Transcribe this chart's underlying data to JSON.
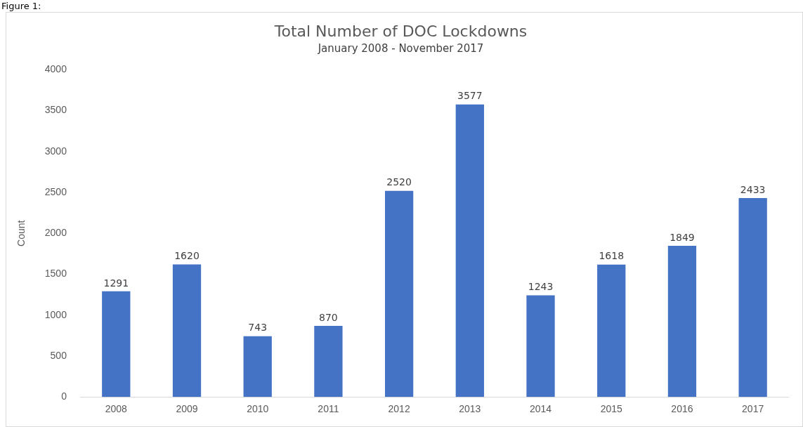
{
  "chart_data": {
    "type": "bar",
    "title": "Total Number of DOC Lockdowns",
    "subtitle": "January 2008 - November 2017",
    "ylabel": "Count",
    "categories": [
      "2008",
      "2009",
      "2010",
      "2011",
      "2012",
      "2013",
      "2014",
      "2015",
      "2016",
      "2017"
    ],
    "values": [
      1291,
      1620,
      743,
      870,
      2520,
      3577,
      1243,
      1618,
      1849,
      2433
    ],
    "color": "#4472c4",
    "ylim": [
      0,
      4000
    ],
    "yticks": [
      0,
      500,
      1000,
      1500,
      2000,
      2500,
      3000,
      3500,
      4000
    ],
    "grid": false,
    "legend": false,
    "data_labels": true,
    "annotations": [
      "Figure 1:"
    ]
  }
}
